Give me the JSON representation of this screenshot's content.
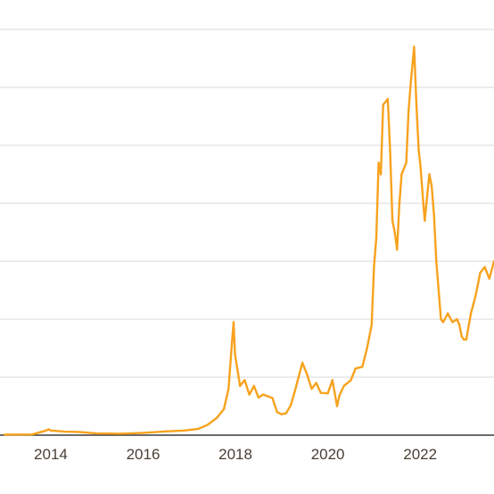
{
  "chart_data": {
    "type": "line",
    "title": "",
    "xlabel": "",
    "ylabel": "",
    "x_tick_labels": [
      "2014",
      "2016",
      "2018",
      "2020",
      "2022"
    ],
    "xlim": [
      2012.9,
      2023.6
    ],
    "ylim": [
      0,
      70000
    ],
    "grid": true,
    "legend": "none",
    "colors": {
      "line": "#f7a21e",
      "grid": "#d9d9d9",
      "axis": "#3a3a3a",
      "text": "#4a4036"
    },
    "series": [
      {
        "x": [
          2013.0,
          2013.6,
          2013.9,
          2013.95,
          2014.0,
          2014.3,
          2014.6,
          2015.0,
          2015.5,
          2016.0,
          2016.5,
          2016.9,
          2017.2,
          2017.4,
          2017.6,
          2017.75,
          2017.85,
          2017.93,
          2017.96,
          2017.99,
          2018.05,
          2018.1,
          2018.2,
          2018.3,
          2018.4,
          2018.5,
          2018.6,
          2018.8,
          2018.9,
          2019.0,
          2019.1,
          2019.2,
          2019.3,
          2019.45,
          2019.55,
          2019.65,
          2019.75,
          2019.85,
          2020.0,
          2020.1,
          2020.2,
          2020.25,
          2020.35,
          2020.5,
          2020.6,
          2020.75,
          2020.85,
          2020.95,
          2021.0,
          2021.05,
          2021.1,
          2021.15,
          2021.2,
          2021.3,
          2021.35,
          2021.4,
          2021.45,
          2021.5,
          2021.55,
          2021.6,
          2021.7,
          2021.75,
          2021.8,
          2021.87,
          2021.92,
          2021.97,
          2022.0,
          2022.1,
          2022.2,
          2022.25,
          2022.3,
          2022.35,
          2022.45,
          2022.5,
          2022.6,
          2022.7,
          2022.8,
          2022.85,
          2022.9,
          2022.95,
          2023.0,
          2023.1,
          2023.2,
          2023.3,
          2023.4,
          2023.5,
          2023.6
        ],
        "values": [
          100,
          120,
          800,
          1000,
          800,
          600,
          550,
          300,
          250,
          400,
          650,
          800,
          1100,
          1800,
          3000,
          4500,
          8000,
          16500,
          19500,
          14000,
          11000,
          8500,
          9500,
          7000,
          8500,
          6500,
          7000,
          6400,
          4000,
          3600,
          3800,
          5200,
          8000,
          12500,
          10500,
          8000,
          9000,
          7300,
          7200,
          9500,
          5000,
          6800,
          8500,
          9500,
          11500,
          11800,
          15000,
          19000,
          29000,
          34000,
          47000,
          45000,
          57000,
          58000,
          49000,
          37000,
          35000,
          32000,
          40000,
          45000,
          47000,
          56000,
          61000,
          67000,
          57000,
          49000,
          47000,
          37000,
          45000,
          43000,
          38000,
          30000,
          20000,
          19500,
          21000,
          19500,
          20000,
          19000,
          17000,
          16500,
          16500,
          21000,
          24000,
          28000,
          29000,
          27000,
          30000
        ]
      }
    ]
  }
}
